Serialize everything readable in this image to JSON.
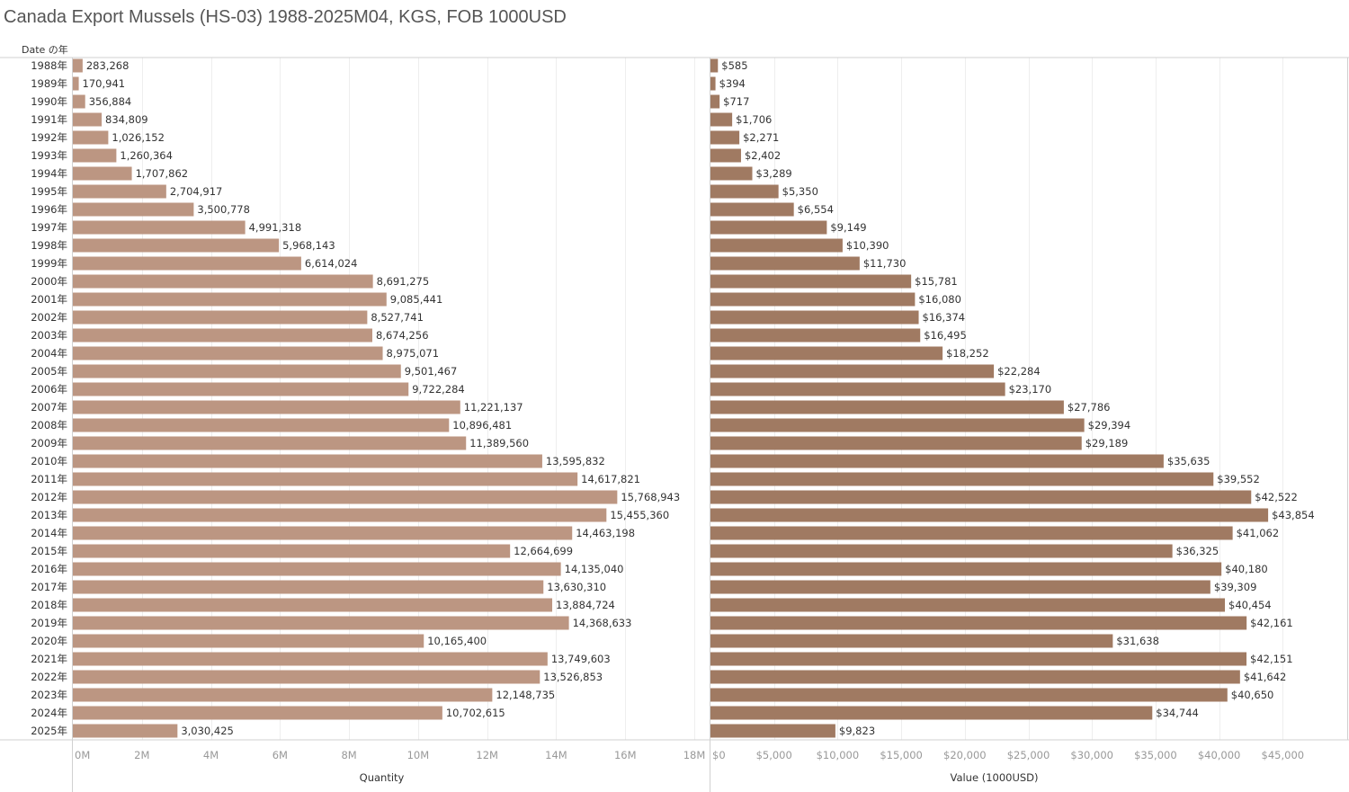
{
  "title": "Canada Export Mussels (HS-03) 1988-2025M04, KGS, FOB 1000USD",
  "row_header": "Date の年",
  "colors": {
    "quantity": "#bc9682",
    "value": "#a07a62",
    "grid": "#eeeeee",
    "axis": "#d0d0d0"
  },
  "chart_data": [
    {
      "type": "bar",
      "orientation": "horizontal",
      "categories": [
        "1988年",
        "1989年",
        "1990年",
        "1991年",
        "1992年",
        "1993年",
        "1994年",
        "1995年",
        "1996年",
        "1997年",
        "1998年",
        "1999年",
        "2000年",
        "2001年",
        "2002年",
        "2003年",
        "2004年",
        "2005年",
        "2006年",
        "2007年",
        "2008年",
        "2009年",
        "2010年",
        "2011年",
        "2012年",
        "2013年",
        "2014年",
        "2015年",
        "2016年",
        "2017年",
        "2018年",
        "2019年",
        "2020年",
        "2021年",
        "2022年",
        "2023年",
        "2024年",
        "2025年"
      ],
      "values": [
        283268,
        170941,
        356884,
        834809,
        1026152,
        1260364,
        1707862,
        2704917,
        3500778,
        4991318,
        5968143,
        6614024,
        8691275,
        9085441,
        8527741,
        8674256,
        8975071,
        9501467,
        9722284,
        11221137,
        10896481,
        11389560,
        13595832,
        14617821,
        15768943,
        15455360,
        14463198,
        12664699,
        14135040,
        13630310,
        13884724,
        14368633,
        10165400,
        13749603,
        13526853,
        12148735,
        10702615,
        3030425
      ],
      "data_labels": [
        "283,268",
        "170,941",
        "356,884",
        "834,809",
        "1,026,152",
        "1,260,364",
        "1,707,862",
        "2,704,917",
        "3,500,778",
        "4,991,318",
        "5,968,143",
        "6,614,024",
        "8,691,275",
        "9,085,441",
        "8,527,741",
        "8,674,256",
        "8,975,071",
        "9,501,467",
        "9,722,284",
        "11,221,137",
        "10,896,481",
        "11,389,560",
        "13,595,832",
        "14,617,821",
        "15,768,943",
        "15,455,360",
        "14,463,198",
        "12,664,699",
        "14,135,040",
        "13,630,310",
        "13,884,724",
        "14,368,633",
        "10,165,400",
        "13,749,603",
        "13,526,853",
        "12,148,735",
        "10,702,615",
        "3,030,425"
      ],
      "xlabel": "Quantity",
      "xlim": [
        0,
        18000000
      ],
      "ticks": [
        0,
        2000000,
        4000000,
        6000000,
        8000000,
        10000000,
        12000000,
        14000000,
        16000000,
        18000000
      ],
      "tick_labels": [
        "0M",
        "2M",
        "4M",
        "6M",
        "8M",
        "10M",
        "12M",
        "14M",
        "16M",
        "18M"
      ],
      "grid": true
    },
    {
      "type": "bar",
      "orientation": "horizontal",
      "categories": [
        "1988年",
        "1989年",
        "1990年",
        "1991年",
        "1992年",
        "1993年",
        "1994年",
        "1995年",
        "1996年",
        "1997年",
        "1998年",
        "1999年",
        "2000年",
        "2001年",
        "2002年",
        "2003年",
        "2004年",
        "2005年",
        "2006年",
        "2007年",
        "2008年",
        "2009年",
        "2010年",
        "2011年",
        "2012年",
        "2013年",
        "2014年",
        "2015年",
        "2016年",
        "2017年",
        "2018年",
        "2019年",
        "2020年",
        "2021年",
        "2022年",
        "2023年",
        "2024年",
        "2025年"
      ],
      "values": [
        585,
        394,
        717,
        1706,
        2271,
        2402,
        3289,
        5350,
        6554,
        9149,
        10390,
        11730,
        15781,
        16080,
        16374,
        16495,
        18252,
        22284,
        23170,
        27786,
        29394,
        29189,
        35635,
        39552,
        42522,
        43854,
        41062,
        36325,
        40180,
        39309,
        40454,
        42161,
        31638,
        42151,
        41642,
        40650,
        34744,
        9823
      ],
      "data_labels": [
        "$585",
        "$394",
        "$717",
        "$1,706",
        "$2,271",
        "$2,402",
        "$3,289",
        "$5,350",
        "$6,554",
        "$9,149",
        "$10,390",
        "$11,730",
        "$15,781",
        "$16,080",
        "$16,374",
        "$16,495",
        "$18,252",
        "$22,284",
        "$23,170",
        "$27,786",
        "$29,394",
        "$29,189",
        "$35,635",
        "$39,552",
        "$42,522",
        "$43,854",
        "$41,062",
        "$36,325",
        "$40,180",
        "$39,309",
        "$40,454",
        "$42,161",
        "$31,638",
        "$42,151",
        "$41,642",
        "$40,650",
        "$34,744",
        "$9,823"
      ],
      "xlabel": "Value (1000USD)",
      "xlim": [
        0,
        50000
      ],
      "ticks": [
        0,
        5000,
        10000,
        15000,
        20000,
        25000,
        30000,
        35000,
        40000,
        45000
      ],
      "tick_labels": [
        "$0",
        "$5,000",
        "$10,000",
        "$15,000",
        "$20,000",
        "$25,000",
        "$30,000",
        "$35,000",
        "$40,000",
        "$45,000"
      ],
      "grid": true
    }
  ]
}
